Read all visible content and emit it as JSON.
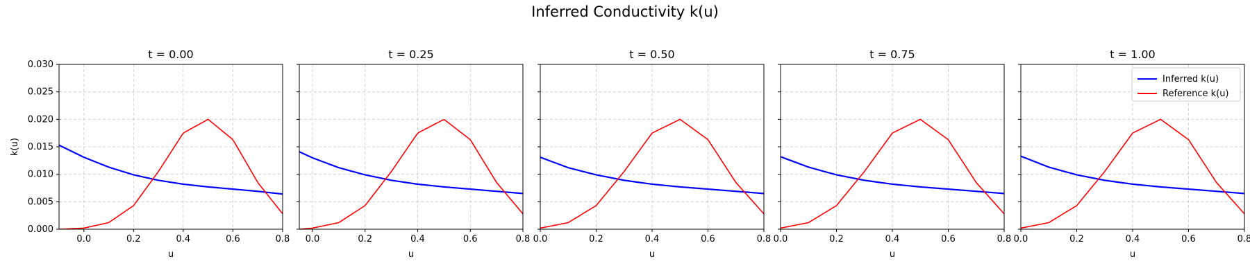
{
  "figure": {
    "title": "Inferred Conductivity k(u)"
  },
  "colors": {
    "inferred": "#0000ff",
    "reference": "#ff0000",
    "grid": "#b0b0b0"
  },
  "chart_data": [
    {
      "type": "line",
      "title": "t = 0.00",
      "xlabel": "u",
      "ylabel": "k(u)",
      "xlim": [
        -0.1,
        0.8
      ],
      "ylim": [
        0,
        0.03
      ],
      "xticks": [
        "0.0",
        "0.2",
        "0.4",
        "0.6",
        "0.8"
      ],
      "yticks": [
        "0.000",
        "0.005",
        "0.010",
        "0.015",
        "0.020",
        "0.025",
        "0.030"
      ],
      "grid": true,
      "legend": null,
      "series": [
        {
          "name": "Inferred k(u)",
          "color": "#0000ff",
          "x": [
            -0.1,
            0.0,
            0.1,
            0.2,
            0.3,
            0.4,
            0.5,
            0.6,
            0.7,
            0.8
          ],
          "y": [
            0.0153,
            0.0131,
            0.0113,
            0.0099,
            0.0089,
            0.0082,
            0.0077,
            0.0073,
            0.0069,
            0.0064
          ]
        },
        {
          "name": "Reference k(u)",
          "color": "#ff0000",
          "x": [
            -0.1,
            0.0,
            0.1,
            0.2,
            0.3,
            0.4,
            0.5,
            0.6,
            0.7,
            0.8
          ],
          "y": [
            0.0,
            0.0002,
            0.0012,
            0.0043,
            0.0105,
            0.0175,
            0.02,
            0.0163,
            0.0085,
            0.0028
          ]
        }
      ]
    },
    {
      "type": "line",
      "title": "t = 0.25",
      "xlabel": "u",
      "ylabel": "",
      "xlim": [
        -0.05,
        0.8
      ],
      "ylim": [
        0,
        0.03
      ],
      "xticks": [
        "0.0",
        "0.2",
        "0.4",
        "0.6",
        "0.8"
      ],
      "yticks": [],
      "grid": true,
      "legend": null,
      "series": [
        {
          "name": "Inferred k(u)",
          "color": "#0000ff",
          "x": [
            -0.05,
            0.0,
            0.1,
            0.2,
            0.3,
            0.4,
            0.5,
            0.6,
            0.7,
            0.8
          ],
          "y": [
            0.0141,
            0.013,
            0.0112,
            0.0099,
            0.0089,
            0.0082,
            0.0077,
            0.0073,
            0.0069,
            0.0065
          ]
        },
        {
          "name": "Reference k(u)",
          "color": "#ff0000",
          "x": [
            -0.05,
            0.0,
            0.1,
            0.2,
            0.3,
            0.4,
            0.5,
            0.6,
            0.7,
            0.8
          ],
          "y": [
            0.0,
            0.0002,
            0.0012,
            0.0043,
            0.0105,
            0.0175,
            0.02,
            0.0163,
            0.0085,
            0.0028
          ]
        }
      ]
    },
    {
      "type": "line",
      "title": "t = 0.50",
      "xlabel": "u",
      "ylabel": "",
      "xlim": [
        0.0,
        0.8
      ],
      "ylim": [
        0,
        0.03
      ],
      "xticks": [
        "0.0",
        "0.2",
        "0.4",
        "0.6",
        "0.8"
      ],
      "yticks": [],
      "grid": true,
      "legend": null,
      "series": [
        {
          "name": "Inferred k(u)",
          "color": "#0000ff",
          "x": [
            0.0,
            0.1,
            0.2,
            0.3,
            0.4,
            0.5,
            0.6,
            0.7,
            0.8
          ],
          "y": [
            0.0131,
            0.0112,
            0.0099,
            0.0089,
            0.0082,
            0.0077,
            0.0073,
            0.0069,
            0.0065
          ]
        },
        {
          "name": "Reference k(u)",
          "color": "#ff0000",
          "x": [
            0.0,
            0.1,
            0.2,
            0.3,
            0.4,
            0.5,
            0.6,
            0.7,
            0.8
          ],
          "y": [
            0.0002,
            0.0012,
            0.0043,
            0.0105,
            0.0175,
            0.02,
            0.0163,
            0.0085,
            0.0028
          ]
        }
      ]
    },
    {
      "type": "line",
      "title": "t = 0.75",
      "xlabel": "u",
      "ylabel": "",
      "xlim": [
        0.0,
        0.8
      ],
      "ylim": [
        0,
        0.03
      ],
      "xticks": [
        "0.0",
        "0.2",
        "0.4",
        "0.6",
        "0.8"
      ],
      "yticks": [],
      "grid": true,
      "legend": null,
      "series": [
        {
          "name": "Inferred k(u)",
          "color": "#0000ff",
          "x": [
            0.0,
            0.1,
            0.2,
            0.3,
            0.4,
            0.5,
            0.6,
            0.7,
            0.8
          ],
          "y": [
            0.0132,
            0.0113,
            0.0099,
            0.0089,
            0.0082,
            0.0077,
            0.0073,
            0.0069,
            0.0065
          ]
        },
        {
          "name": "Reference k(u)",
          "color": "#ff0000",
          "x": [
            0.0,
            0.1,
            0.2,
            0.3,
            0.4,
            0.5,
            0.6,
            0.7,
            0.8
          ],
          "y": [
            0.0002,
            0.0012,
            0.0043,
            0.0105,
            0.0175,
            0.02,
            0.0163,
            0.0085,
            0.0028
          ]
        }
      ]
    },
    {
      "type": "line",
      "title": "t = 1.00",
      "xlabel": "u",
      "ylabel": "",
      "xlim": [
        0.0,
        0.8
      ],
      "ylim": [
        0,
        0.03
      ],
      "xticks": [
        "0.0",
        "0.2",
        "0.4",
        "0.6",
        "0.8"
      ],
      "yticks": [],
      "grid": true,
      "legend": "top-right",
      "series": [
        {
          "name": "Inferred k(u)",
          "color": "#0000ff",
          "x": [
            0.0,
            0.1,
            0.2,
            0.3,
            0.4,
            0.5,
            0.6,
            0.7,
            0.8
          ],
          "y": [
            0.0133,
            0.0113,
            0.0099,
            0.0089,
            0.0082,
            0.0077,
            0.0073,
            0.0069,
            0.0065
          ]
        },
        {
          "name": "Reference k(u)",
          "color": "#ff0000",
          "x": [
            0.0,
            0.1,
            0.2,
            0.3,
            0.4,
            0.5,
            0.6,
            0.7,
            0.8
          ],
          "y": [
            0.0002,
            0.0012,
            0.0043,
            0.0105,
            0.0175,
            0.02,
            0.0163,
            0.0085,
            0.0028
          ]
        }
      ]
    }
  ]
}
